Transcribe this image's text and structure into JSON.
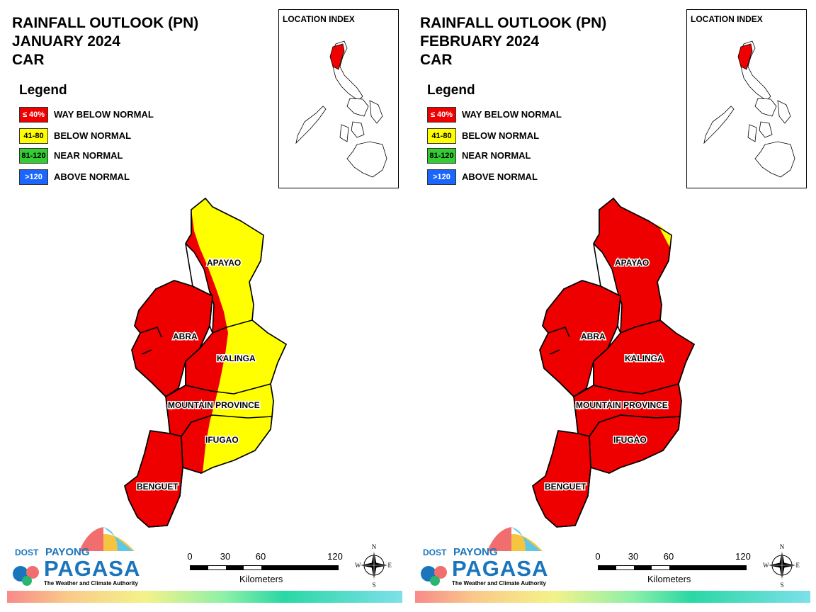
{
  "colors": {
    "way_below": "#ee0000",
    "below": "#ffff00",
    "near": "#33cc33",
    "above": "#1a66ff"
  },
  "legend_heading": "Legend",
  "legend": [
    {
      "range": "≤ 40%",
      "label": "WAY BELOW NORMAL",
      "color": "#ee0000",
      "text_color": "#ffffff"
    },
    {
      "range": "41-80",
      "label": "BELOW NORMAL",
      "color": "#ffff00",
      "text_color": "#000000"
    },
    {
      "range": "81-120",
      "label": "NEAR NORMAL",
      "color": "#33cc33",
      "text_color": "#000000"
    },
    {
      "range": ">120",
      "label": "ABOVE NORMAL",
      "color": "#1a66ff",
      "text_color": "#ffffff"
    }
  ],
  "inset_title": "LOCATION INDEX",
  "scale": {
    "ticks": [
      "0",
      "30",
      "60",
      "120"
    ],
    "unit": "Kilometers"
  },
  "compass": {
    "n": "N",
    "s": "S",
    "e": "E",
    "w": "W"
  },
  "logo": {
    "dost": "DOST",
    "payong": "PAYONG",
    "pagasa": "PAGASA",
    "tagline": "The Weather and Climate Authority"
  },
  "panels": [
    {
      "title_1": "RAINFALL OUTLOOK (PN)",
      "title_2": "JANUARY 2024",
      "title_3": "CAR",
      "provinces": [
        {
          "name": "APAYAO",
          "category": "mixed (west: way below normal, east: below normal)"
        },
        {
          "name": "ABRA",
          "category": "way below normal"
        },
        {
          "name": "KALINGA",
          "category": "mixed (west: way below normal, east: below normal)"
        },
        {
          "name": "MOUNTAIN PROVINCE",
          "category": "mixed (west: way below normal, east: below normal)"
        },
        {
          "name": "IFUGAO",
          "category": "mixed (west: way below normal, east: below normal)"
        },
        {
          "name": "BENGUET",
          "category": "way below normal"
        }
      ]
    },
    {
      "title_1": "RAINFALL OUTLOOK (PN)",
      "title_2": "FEBRUARY 2024",
      "title_3": "CAR",
      "provinces": [
        {
          "name": "APAYAO",
          "category": "way below normal (small below normal area in the northeast)"
        },
        {
          "name": "ABRA",
          "category": "way below normal"
        },
        {
          "name": "KALINGA",
          "category": "way below normal"
        },
        {
          "name": "MOUNTAIN PROVINCE",
          "category": "way below normal"
        },
        {
          "name": "IFUGAO",
          "category": "way below normal"
        },
        {
          "name": "BENGUET",
          "category": "way below normal"
        }
      ]
    }
  ]
}
